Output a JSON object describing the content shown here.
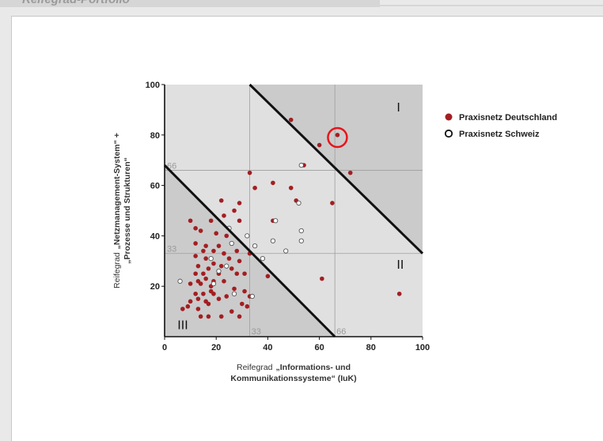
{
  "header": {
    "title": "Reifegrad-Portfolio"
  },
  "chart_data": {
    "type": "scatter",
    "xlabel_light": "Reifegrad",
    "xlabel_bold_1": "„Informations- und",
    "xlabel_bold_2": "Kommunikationssysteme“ (IuK)",
    "ylabel_light": "Reifegrad",
    "ylabel_bold_1": "„Netzmanagement-System“ +",
    "ylabel_bold_2": "„Prozesse und Strukturen“",
    "xlim": [
      0,
      100
    ],
    "ylim": [
      0,
      100
    ],
    "x_ticks": [
      "0",
      "20",
      "40",
      "60",
      "80",
      "100"
    ],
    "y_ticks": [
      "20",
      "40",
      "60",
      "80",
      "100"
    ],
    "boundary_labels": {
      "x33": "33",
      "x66": "66",
      "y33": "33",
      "y66": "66"
    },
    "zones": {
      "top_right": "I",
      "mid_right": "II",
      "bottom_left": "III"
    },
    "lines": [
      {
        "from": [
          0,
          68
        ],
        "to": [
          66,
          0
        ]
      },
      {
        "from": [
          33,
          100
        ],
        "to": [
          100,
          33
        ]
      }
    ],
    "highlight": {
      "x": 67,
      "y": 79
    },
    "legend": [
      "Praxisnetz Deutschland",
      "Praxisnetz Schweiz"
    ],
    "colors": {
      "deutschland": "#a31e22",
      "schweiz": "#ffffff",
      "highlight": "#e8141a"
    },
    "series": [
      {
        "name": "Praxisnetz Deutschland",
        "points": [
          [
            49,
            86
          ],
          [
            60,
            76
          ],
          [
            67,
            80
          ],
          [
            72,
            65
          ],
          [
            54,
            68
          ],
          [
            33,
            65
          ],
          [
            42,
            61
          ],
          [
            35,
            59
          ],
          [
            49,
            59
          ],
          [
            51,
            54
          ],
          [
            65,
            53
          ],
          [
            22,
            54
          ],
          [
            29,
            53
          ],
          [
            27,
            50
          ],
          [
            23,
            48
          ],
          [
            10,
            46
          ],
          [
            18,
            46
          ],
          [
            29,
            46
          ],
          [
            42,
            46
          ],
          [
            12,
            43
          ],
          [
            14,
            42
          ],
          [
            20,
            41
          ],
          [
            24,
            40
          ],
          [
            12,
            37
          ],
          [
            16,
            36
          ],
          [
            21,
            36
          ],
          [
            15,
            34
          ],
          [
            19,
            34
          ],
          [
            23,
            33
          ],
          [
            28,
            34
          ],
          [
            33,
            33
          ],
          [
            12,
            32
          ],
          [
            16,
            31
          ],
          [
            25,
            31
          ],
          [
            29,
            30
          ],
          [
            19,
            29
          ],
          [
            22,
            28
          ],
          [
            13,
            28
          ],
          [
            17,
            27
          ],
          [
            26,
            27
          ],
          [
            12,
            25
          ],
          [
            15,
            25
          ],
          [
            21,
            25
          ],
          [
            28,
            25
          ],
          [
            31,
            25
          ],
          [
            40,
            24
          ],
          [
            61,
            23
          ],
          [
            13,
            22
          ],
          [
            16,
            23
          ],
          [
            19,
            22
          ],
          [
            23,
            22
          ],
          [
            10,
            21
          ],
          [
            14,
            21
          ],
          [
            18,
            20
          ],
          [
            27,
            19
          ],
          [
            31,
            18
          ],
          [
            12,
            17
          ],
          [
            15,
            17
          ],
          [
            19,
            17
          ],
          [
            24,
            16
          ],
          [
            13,
            15
          ],
          [
            16,
            14
          ],
          [
            21,
            15
          ],
          [
            10,
            14
          ],
          [
            17,
            13
          ],
          [
            30,
            13
          ],
          [
            9,
            12
          ],
          [
            13,
            11
          ],
          [
            32,
            12
          ],
          [
            7,
            11
          ],
          [
            26,
            10
          ],
          [
            29,
            8
          ],
          [
            14,
            8
          ],
          [
            17,
            8
          ],
          [
            22,
            8
          ],
          [
            91,
            17
          ],
          [
            18,
            18
          ],
          [
            33,
            16
          ]
        ]
      },
      {
        "name": "Praxisnetz Schweiz",
        "points": [
          [
            53,
            68
          ],
          [
            52,
            53
          ],
          [
            53,
            42
          ],
          [
            43,
            46
          ],
          [
            25,
            43
          ],
          [
            32,
            40
          ],
          [
            53,
            38
          ],
          [
            42,
            38
          ],
          [
            26,
            37
          ],
          [
            35,
            36
          ],
          [
            47,
            34
          ],
          [
            18,
            31
          ],
          [
            38,
            31
          ],
          [
            24,
            28
          ],
          [
            21,
            26
          ],
          [
            6,
            22
          ],
          [
            19,
            21
          ],
          [
            27,
            17
          ],
          [
            34,
            16
          ]
        ]
      }
    ]
  }
}
